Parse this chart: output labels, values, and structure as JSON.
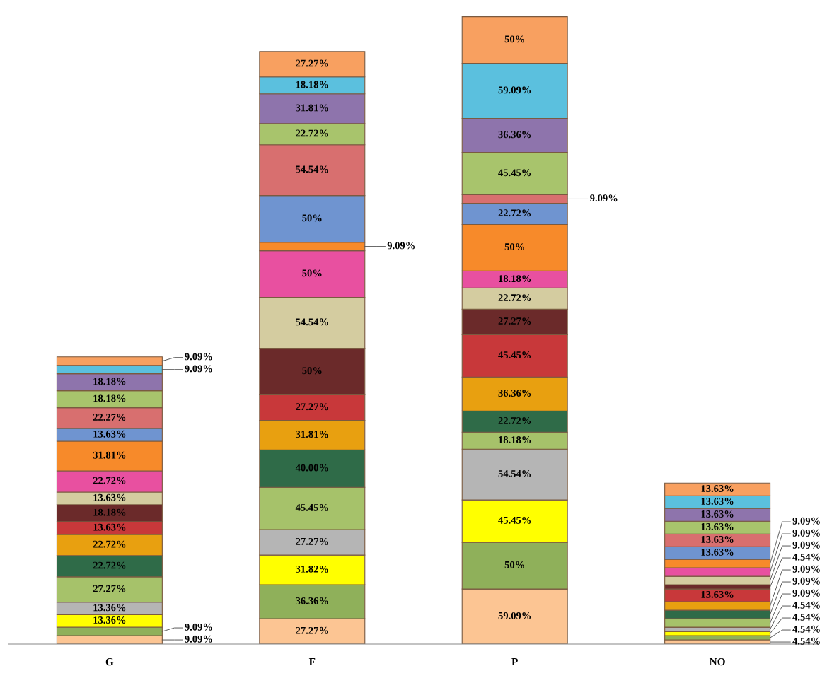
{
  "chart_data": {
    "type": "bar",
    "stacked": true,
    "tick_labels": "x",
    "grid": false,
    "legend": false,
    "categories": [
      "G",
      "F",
      "P",
      "NO"
    ],
    "series": [
      {
        "color": "#fcc593",
        "values": [
          9.09,
          27.27,
          59.09,
          4.54
        ],
        "value_labels": [
          "9.09%",
          "27.27%",
          "59.09%",
          "4.54%"
        ]
      },
      {
        "color": "#8fb05a",
        "values": [
          9.09,
          36.36,
          50,
          4.54
        ],
        "value_labels": [
          "9.09%",
          "36.36%",
          "50%",
          "4.54%"
        ]
      },
      {
        "color": "#ffff00",
        "values": [
          13.36,
          31.82,
          45.45,
          4.54
        ],
        "value_labels": [
          "13.36%",
          "31.82%",
          "45.45%",
          "4.54%"
        ]
      },
      {
        "color": "#b5b5b5",
        "values": [
          13.36,
          27.27,
          54.54,
          4.54
        ],
        "value_labels": [
          "13.36%",
          "27.27%",
          "54.54%",
          "4.54%"
        ]
      },
      {
        "color": "#a6c26a",
        "values": [
          27.27,
          45.45,
          18.18,
          9.09
        ],
        "value_labels": [
          "27.27%",
          "45.45%",
          "18.18%",
          "9.09%"
        ]
      },
      {
        "color": "#2f6b48",
        "values": [
          22.72,
          40.0,
          22.72,
          9.09
        ],
        "value_labels": [
          "22.72%",
          "40.00%",
          "22.72%",
          "9.09%"
        ]
      },
      {
        "color": "#e8a010",
        "values": [
          22.72,
          31.81,
          36.36,
          9.09
        ],
        "value_labels": [
          "22.72%",
          "31.81%",
          "36.36%",
          "9.09%"
        ]
      },
      {
        "color": "#c8383a",
        "values": [
          13.63,
          27.27,
          45.45,
          13.63
        ],
        "value_labels": [
          "13.63%",
          "27.27%",
          "45.45%",
          "13.63%"
        ]
      },
      {
        "color": "#6b2a2a",
        "values": [
          18.18,
          50,
          27.27,
          4.54
        ],
        "value_labels": [
          "18.18%",
          "50%",
          "27.27%",
          "4.54%"
        ]
      },
      {
        "color": "#d4cca0",
        "values": [
          13.63,
          54.54,
          22.72,
          9.09
        ],
        "value_labels": [
          "13.63%",
          "54.54%",
          "22.72%",
          "9.09%"
        ]
      },
      {
        "color": "#e850a0",
        "values": [
          22.72,
          50,
          18.18,
          9.09
        ],
        "value_labels": [
          "22.72%",
          "50%",
          "18.18%",
          "9.09%"
        ]
      },
      {
        "color": "#f78a2a",
        "values": [
          31.81,
          9.09,
          50,
          9.09
        ],
        "value_labels": [
          "31.81%",
          "9.09%",
          "50%",
          "9.09%"
        ]
      },
      {
        "color": "#6f94d0",
        "values": [
          13.63,
          50,
          22.72,
          13.63
        ],
        "value_labels": [
          "13.63%",
          "50%",
          "22.72%",
          "13.63%"
        ]
      },
      {
        "color": "#d86f6f",
        "values": [
          22.27,
          54.54,
          9.09,
          13.63
        ],
        "value_labels": [
          "22.27%",
          "54.54%",
          "9.09%",
          "13.63%"
        ]
      },
      {
        "color": "#a8c46c",
        "values": [
          18.18,
          22.72,
          45.45,
          13.63
        ],
        "value_labels": [
          "18.18%",
          "22.72%",
          "45.45%",
          "13.63%"
        ]
      },
      {
        "color": "#8e74ac",
        "values": [
          18.18,
          31.81,
          36.36,
          13.63
        ],
        "value_labels": [
          "18.18%",
          "31.81%",
          "36.36%",
          "13.63%"
        ]
      },
      {
        "color": "#5bc0de",
        "values": [
          9.09,
          18.18,
          59.09,
          13.63
        ],
        "value_labels": [
          "9.09%",
          "18.18%",
          "59.09%",
          "13.63%"
        ]
      },
      {
        "color": "#f8a060",
        "values": [
          9.09,
          27.27,
          50,
          13.63
        ],
        "value_labels": [
          "9.09%",
          "27.27%",
          "50%",
          "13.63%"
        ]
      }
    ]
  }
}
